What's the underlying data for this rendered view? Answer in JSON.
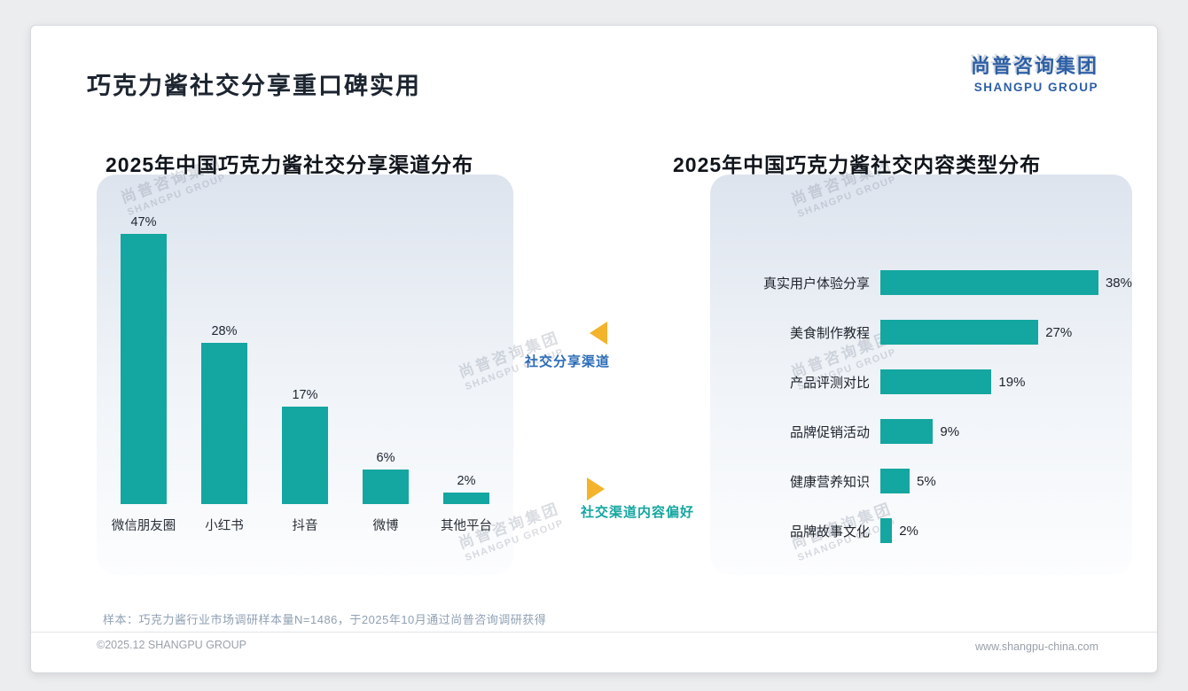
{
  "header": {
    "title": "巧克力酱社交分享重口碑实用",
    "logo_cn": "尚普咨询集团",
    "logo_en": "SHANGPU GROUP"
  },
  "annotations": {
    "top_label": "社交分享渠道",
    "bottom_label": "社交渠道内容偏好"
  },
  "chart_data": [
    {
      "type": "bar",
      "orientation": "vertical",
      "title": "2025年中国巧克力酱社交分享渠道分布",
      "categories": [
        "微信朋友圈",
        "小红书",
        "抖音",
        "微博",
        "其他平台"
      ],
      "values": [
        47,
        28,
        17,
        6,
        2
      ],
      "unit": "%",
      "ylim": [
        0,
        50
      ],
      "grid": false,
      "legend": "none",
      "bar_color": "#14a6a0"
    },
    {
      "type": "bar",
      "orientation": "horizontal",
      "title": "2025年中国巧克力酱社交内容类型分布",
      "categories": [
        "真实用户体验分享",
        "美食制作教程",
        "产品评测对比",
        "品牌促销活动",
        "健康营养知识",
        "品牌故事文化"
      ],
      "values": [
        38,
        27,
        19,
        9,
        5,
        2
      ],
      "unit": "%",
      "xlim": [
        0,
        40
      ],
      "grid": false,
      "legend": "none",
      "bar_color": "#14a6a0"
    }
  ],
  "watermark": {
    "line1": "尚普咨询集团",
    "line2": "SHANGPU GROUP"
  },
  "footnote": "样本：巧克力酱行业市场调研样本量N=1486，于2025年10月通过尚普咨询调研获得",
  "footer": {
    "left": "©2025.12 SHANGPU GROUP",
    "right": "www.shangpu-china.com"
  },
  "colors": {
    "bar_teal": "#14a6a0",
    "logo_blue": "#2d5fa6",
    "annotation_blue": "#2b6cb8",
    "annotation_teal": "#14a6a0",
    "arrow_yellow": "#f3b32b"
  }
}
